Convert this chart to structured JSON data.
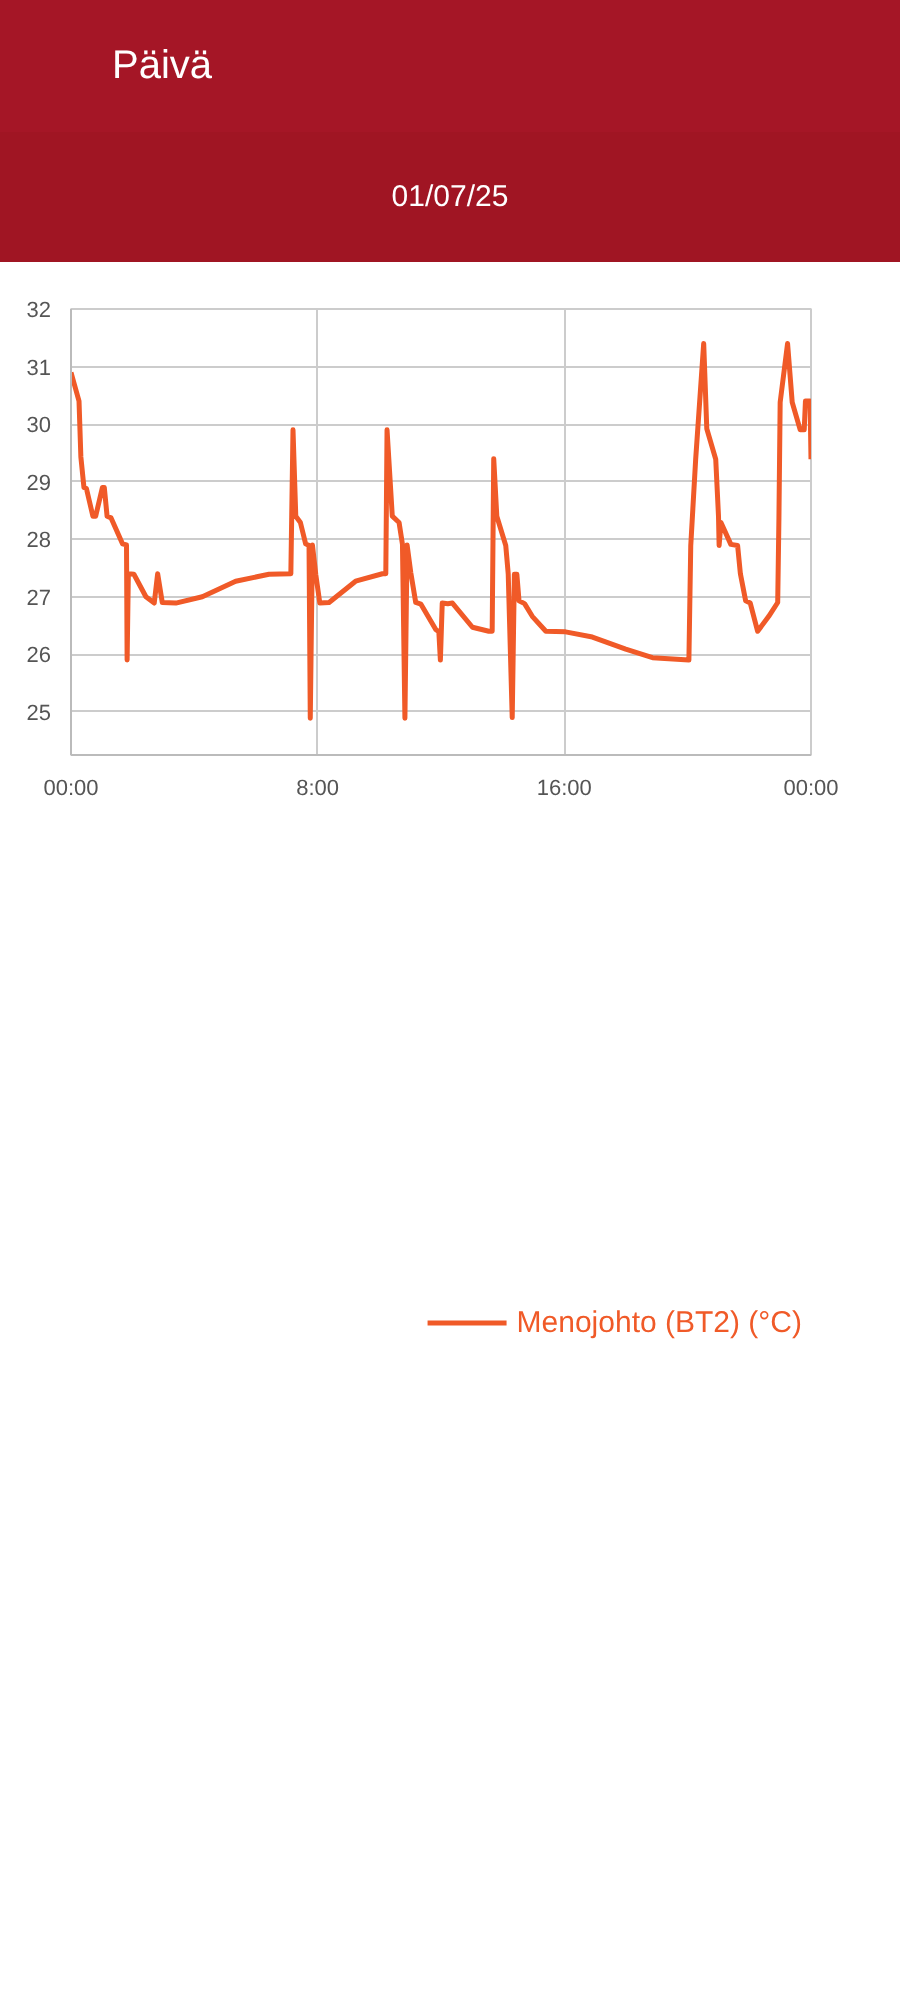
{
  "chart_data": {
    "type": "line",
    "title": "Päivä",
    "subtitle": "01/07/25",
    "x": [
      0,
      0.26,
      0.32,
      0.42,
      0.5,
      0.71,
      0.8,
      1.02,
      1.08,
      1.17,
      1.3,
      1.67,
      1.8,
      1.82,
      1.86,
      2.04,
      2.43,
      2.7,
      2.81,
      2.96,
      3.4,
      4.26,
      5.34,
      6.42,
      7.13,
      7.2,
      7.29,
      7.44,
      7.61,
      7.72,
      7.76,
      7.83,
      7.94,
      8.07,
      8.37,
      9.23,
      10.1,
      10.21,
      10.25,
      10.42,
      10.64,
      10.75,
      10.83,
      10.9,
      11.02,
      11.18,
      11.35,
      11.83,
      11.93,
      11.98,
      12.04,
      12.22,
      12.37,
      13.02,
      13.55,
      13.66,
      13.71,
      13.81,
      14.1,
      14.18,
      14.31,
      14.38,
      14.46,
      14.53,
      14.71,
      14.96,
      15.4,
      16.04,
      16.91,
      17.99,
      18.86,
      20.04,
      20.1,
      20.26,
      20.52,
      20.62,
      20.91,
      21.0,
      21.02,
      21.08,
      21.4,
      21.62,
      21.71,
      21.88,
      22.03,
      22.27,
      22.63,
      22.92,
      22.96,
      23.0,
      23.24,
      23.39,
      23.65,
      23.78,
      23.82,
      23.97,
      24.0
    ],
    "series": [
      {
        "name": "Menojohto (BT2) (°C)",
        "color": "#f05a28",
        "values": [
          30.9,
          30.4,
          29.43,
          28.9,
          28.88,
          28.4,
          28.4,
          28.9,
          28.9,
          28.4,
          28.37,
          27.92,
          27.9,
          25.9,
          27.4,
          27.39,
          27.0,
          26.89,
          27.4,
          26.9,
          26.89,
          27.0,
          27.27,
          27.39,
          27.4,
          29.9,
          28.4,
          28.29,
          27.92,
          27.89,
          24.89,
          27.9,
          27.38,
          26.89,
          26.9,
          27.27,
          27.4,
          27.4,
          29.9,
          28.4,
          28.29,
          27.91,
          24.89,
          27.9,
          27.42,
          26.9,
          26.87,
          26.43,
          26.39,
          25.9,
          26.89,
          26.88,
          26.89,
          26.47,
          26.4,
          26.4,
          29.4,
          28.4,
          27.89,
          27.4,
          24.9,
          27.39,
          27.39,
          26.93,
          26.88,
          26.66,
          26.4,
          26.39,
          26.3,
          26.09,
          25.94,
          25.9,
          27.89,
          29.39,
          31.4,
          29.92,
          29.39,
          28.4,
          27.89,
          28.29,
          27.91,
          27.89,
          27.4,
          26.93,
          26.89,
          26.4,
          26.66,
          26.9,
          28.37,
          30.38,
          31.4,
          30.38,
          29.9,
          29.9,
          30.4,
          30.4,
          29.39
        ]
      }
    ],
    "xlim": [
      0,
      24
    ],
    "xticks": [
      {
        "value": 0,
        "label": "00:00"
      },
      {
        "value": 8,
        "label": "8:00"
      },
      {
        "value": 16,
        "label": "16:00"
      },
      {
        "value": 24,
        "label": "00:00"
      }
    ],
    "ylim": [
      24.25,
      32
    ],
    "yticks": [
      25,
      26,
      27,
      28,
      29,
      30,
      31,
      32
    ],
    "grid": true,
    "legend": "bottom",
    "marker": "none",
    "line_style": "solid"
  }
}
